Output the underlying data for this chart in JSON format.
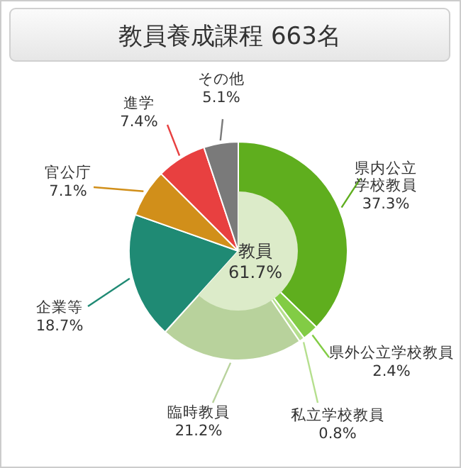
{
  "chart_data": {
    "type": "pie",
    "title": "教員養成課程 663名",
    "categories": [
      "県内公立学校教員",
      "県外公立学校教員",
      "私立学校教員",
      "臨時教員",
      "企業等",
      "官公庁",
      "進学",
      "その他"
    ],
    "values": [
      37.3,
      2.4,
      0.8,
      21.2,
      18.7,
      7.1,
      7.4,
      5.1
    ],
    "colors": [
      "#5fae1e",
      "#82cc45",
      "#b5df8e",
      "#b8d29c",
      "#1f8a74",
      "#d18f1a",
      "#e84040",
      "#7a7a7a"
    ],
    "value_labels": [
      "37.3%",
      "2.4%",
      "0.8%",
      "21.2%",
      "18.7%",
      "7.1%",
      "7.4%",
      "5.1%"
    ],
    "series": [
      {
        "name": "教員",
        "type": "pie",
        "values": [
          61.7,
          null,
          null,
          null,
          null,
          null,
          null,
          null
        ],
        "value_labels": [
          "61.7%",
          null,
          null,
          null,
          null,
          null,
          null,
          null
        ],
        "colors": [
          "#dcebc9",
          null,
          null,
          null,
          null,
          null,
          null,
          null
        ]
      }
    ]
  }
}
